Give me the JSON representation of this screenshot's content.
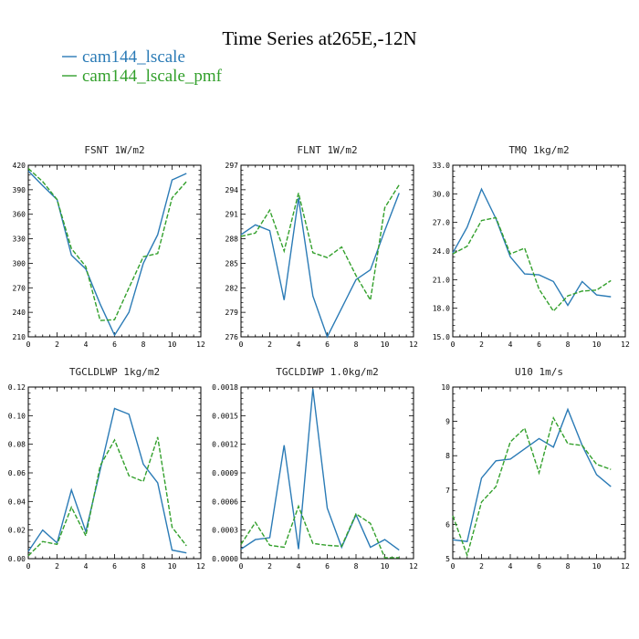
{
  "figure_title": "Time Series at265E,-12N",
  "legend": [
    {
      "label": "cam144_lscale",
      "color": "#2b7bb6",
      "dash": "solid"
    },
    {
      "label": "cam144_lscale_pmf",
      "color": "#33a02c",
      "dash": "dashed"
    }
  ],
  "chart_data": [
    {
      "type": "line",
      "title": "FSNT",
      "units": "1W/m2",
      "xlim": [
        0,
        12
      ],
      "xticks": [
        0,
        2,
        4,
        6,
        8,
        10,
        12
      ],
      "ylim": [
        210,
        420
      ],
      "yticks": [
        210,
        240,
        270,
        300,
        330,
        360,
        390,
        420
      ],
      "ytick_labels": [
        "210",
        "240",
        "270",
        "300",
        "330",
        "360",
        "390",
        "420"
      ],
      "x": [
        0,
        1,
        2,
        3,
        4,
        5,
        6,
        7,
        8,
        9,
        10,
        11
      ],
      "series": [
        {
          "name": "cam144_lscale",
          "values": [
            413,
            395,
            378,
            310,
            293,
            250,
            212,
            240,
            300,
            335,
            402,
            410
          ]
        },
        {
          "name": "cam144_lscale_pmf",
          "values": [
            416,
            400,
            378,
            318,
            296,
            230,
            231,
            270,
            308,
            312,
            380,
            400
          ]
        }
      ]
    },
    {
      "type": "line",
      "title": "FLNT",
      "units": "1W/m2",
      "xlim": [
        0,
        12
      ],
      "xticks": [
        0,
        2,
        4,
        6,
        8,
        10,
        12
      ],
      "ylim": [
        276,
        297
      ],
      "yticks": [
        276,
        279,
        282,
        285,
        288,
        291,
        294,
        297
      ],
      "ytick_labels": [
        "276",
        "279",
        "282",
        "285",
        "288",
        "291",
        "294",
        "297"
      ],
      "x": [
        0,
        1,
        2,
        3,
        4,
        5,
        6,
        7,
        8,
        9,
        10,
        11
      ],
      "series": [
        {
          "name": "cam144_lscale",
          "values": [
            288.5,
            289.7,
            289.0,
            280.5,
            293.0,
            281.0,
            276.0,
            279.5,
            283.0,
            284.2,
            289.0,
            293.6
          ]
        },
        {
          "name": "cam144_lscale_pmf",
          "values": [
            288.3,
            288.7,
            291.5,
            286.5,
            293.6,
            286.3,
            285.7,
            287.0,
            283.5,
            280.5,
            291.8,
            294.6
          ]
        }
      ]
    },
    {
      "type": "line",
      "title": "TMQ",
      "units": "1kg/m2",
      "xlim": [
        0,
        12
      ],
      "xticks": [
        0,
        2,
        4,
        6,
        8,
        10,
        12
      ],
      "ylim": [
        15,
        33
      ],
      "yticks": [
        15,
        18,
        21,
        24,
        27,
        30,
        33
      ],
      "ytick_labels": [
        "15.0",
        "18.0",
        "21.0",
        "24.0",
        "27.0",
        "30.0",
        "33.0"
      ],
      "x": [
        0,
        1,
        2,
        3,
        4,
        5,
        6,
        7,
        8,
        9,
        10,
        11
      ],
      "series": [
        {
          "name": "cam144_lscale",
          "values": [
            23.8,
            26.5,
            30.5,
            27.4,
            23.4,
            21.6,
            21.5,
            20.8,
            18.3,
            20.8,
            19.4,
            19.2
          ]
        },
        {
          "name": "cam144_lscale_pmf",
          "values": [
            23.7,
            24.5,
            27.2,
            27.5,
            23.7,
            24.3,
            20.0,
            17.7,
            19.3,
            19.8,
            19.9,
            20.9
          ]
        }
      ]
    },
    {
      "type": "line",
      "title": "TGCLDLWP",
      "units": "1kg/m2",
      "xlim": [
        0,
        12
      ],
      "xticks": [
        0,
        2,
        4,
        6,
        8,
        10,
        12
      ],
      "ylim": [
        0,
        0.12
      ],
      "yticks": [
        0,
        0.02,
        0.04,
        0.06,
        0.08,
        0.1,
        0.12
      ],
      "ytick_labels": [
        "0.00",
        "0.02",
        "0.04",
        "0.06",
        "0.08",
        "0.10",
        "0.12"
      ],
      "x": [
        0,
        1,
        2,
        3,
        4,
        5,
        6,
        7,
        8,
        9,
        10,
        11
      ],
      "series": [
        {
          "name": "cam144_lscale",
          "values": [
            0.005,
            0.02,
            0.011,
            0.048,
            0.019,
            0.062,
            0.105,
            0.101,
            0.066,
            0.053,
            0.006,
            0.004
          ]
        },
        {
          "name": "cam144_lscale_pmf",
          "values": [
            0.002,
            0.012,
            0.01,
            0.036,
            0.016,
            0.065,
            0.083,
            0.058,
            0.054,
            0.085,
            0.022,
            0.009
          ]
        }
      ]
    },
    {
      "type": "line",
      "title": "TGCLDIWP",
      "units": "1.0kg/m2",
      "xlim": [
        0,
        12
      ],
      "xticks": [
        0,
        2,
        4,
        6,
        8,
        10,
        12
      ],
      "ylim": [
        0,
        0.0018
      ],
      "yticks": [
        0,
        0.0003,
        0.0006,
        0.0009,
        0.0012,
        0.0015,
        0.0018
      ],
      "ytick_labels": [
        "0.0000",
        "0.0003",
        "0.0006",
        "0.0009",
        "0.0012",
        "0.0015",
        "0.0018"
      ],
      "x": [
        0,
        1,
        2,
        3,
        4,
        5,
        6,
        7,
        8,
        9,
        10,
        11
      ],
      "series": [
        {
          "name": "cam144_lscale",
          "values": [
            0.0001,
            0.0002,
            0.00022,
            0.00119,
            0.0001,
            0.00178,
            0.00053,
            0.00012,
            0.00046,
            0.00012,
            0.0002,
            9e-05
          ]
        },
        {
          "name": "cam144_lscale_pmf",
          "values": [
            0.00015,
            0.00038,
            0.00014,
            0.00012,
            0.00055,
            0.00016,
            0.00014,
            0.00013,
            0.00047,
            0.00037,
            1e-05,
            1e-05
          ]
        }
      ]
    },
    {
      "type": "line",
      "title": "U10",
      "units": "1m/s",
      "xlim": [
        0,
        12
      ],
      "xticks": [
        0,
        2,
        4,
        6,
        8,
        10,
        12
      ],
      "ylim": [
        5,
        10
      ],
      "yticks": [
        5,
        6,
        7,
        8,
        9,
        10
      ],
      "ytick_labels": [
        "5",
        "6",
        "7",
        "8",
        "9",
        "10"
      ],
      "x": [
        0,
        1,
        2,
        3,
        4,
        5,
        6,
        7,
        8,
        9,
        10,
        11
      ],
      "series": [
        {
          "name": "cam144_lscale",
          "values": [
            5.55,
            5.5,
            7.35,
            7.85,
            7.9,
            8.2,
            8.5,
            8.25,
            9.35,
            8.3,
            7.45,
            7.1
          ]
        },
        {
          "name": "cam144_lscale_pmf",
          "values": [
            6.25,
            5.1,
            6.65,
            7.1,
            8.4,
            8.8,
            7.5,
            9.1,
            8.35,
            8.3,
            7.75,
            7.6
          ]
        }
      ]
    }
  ]
}
